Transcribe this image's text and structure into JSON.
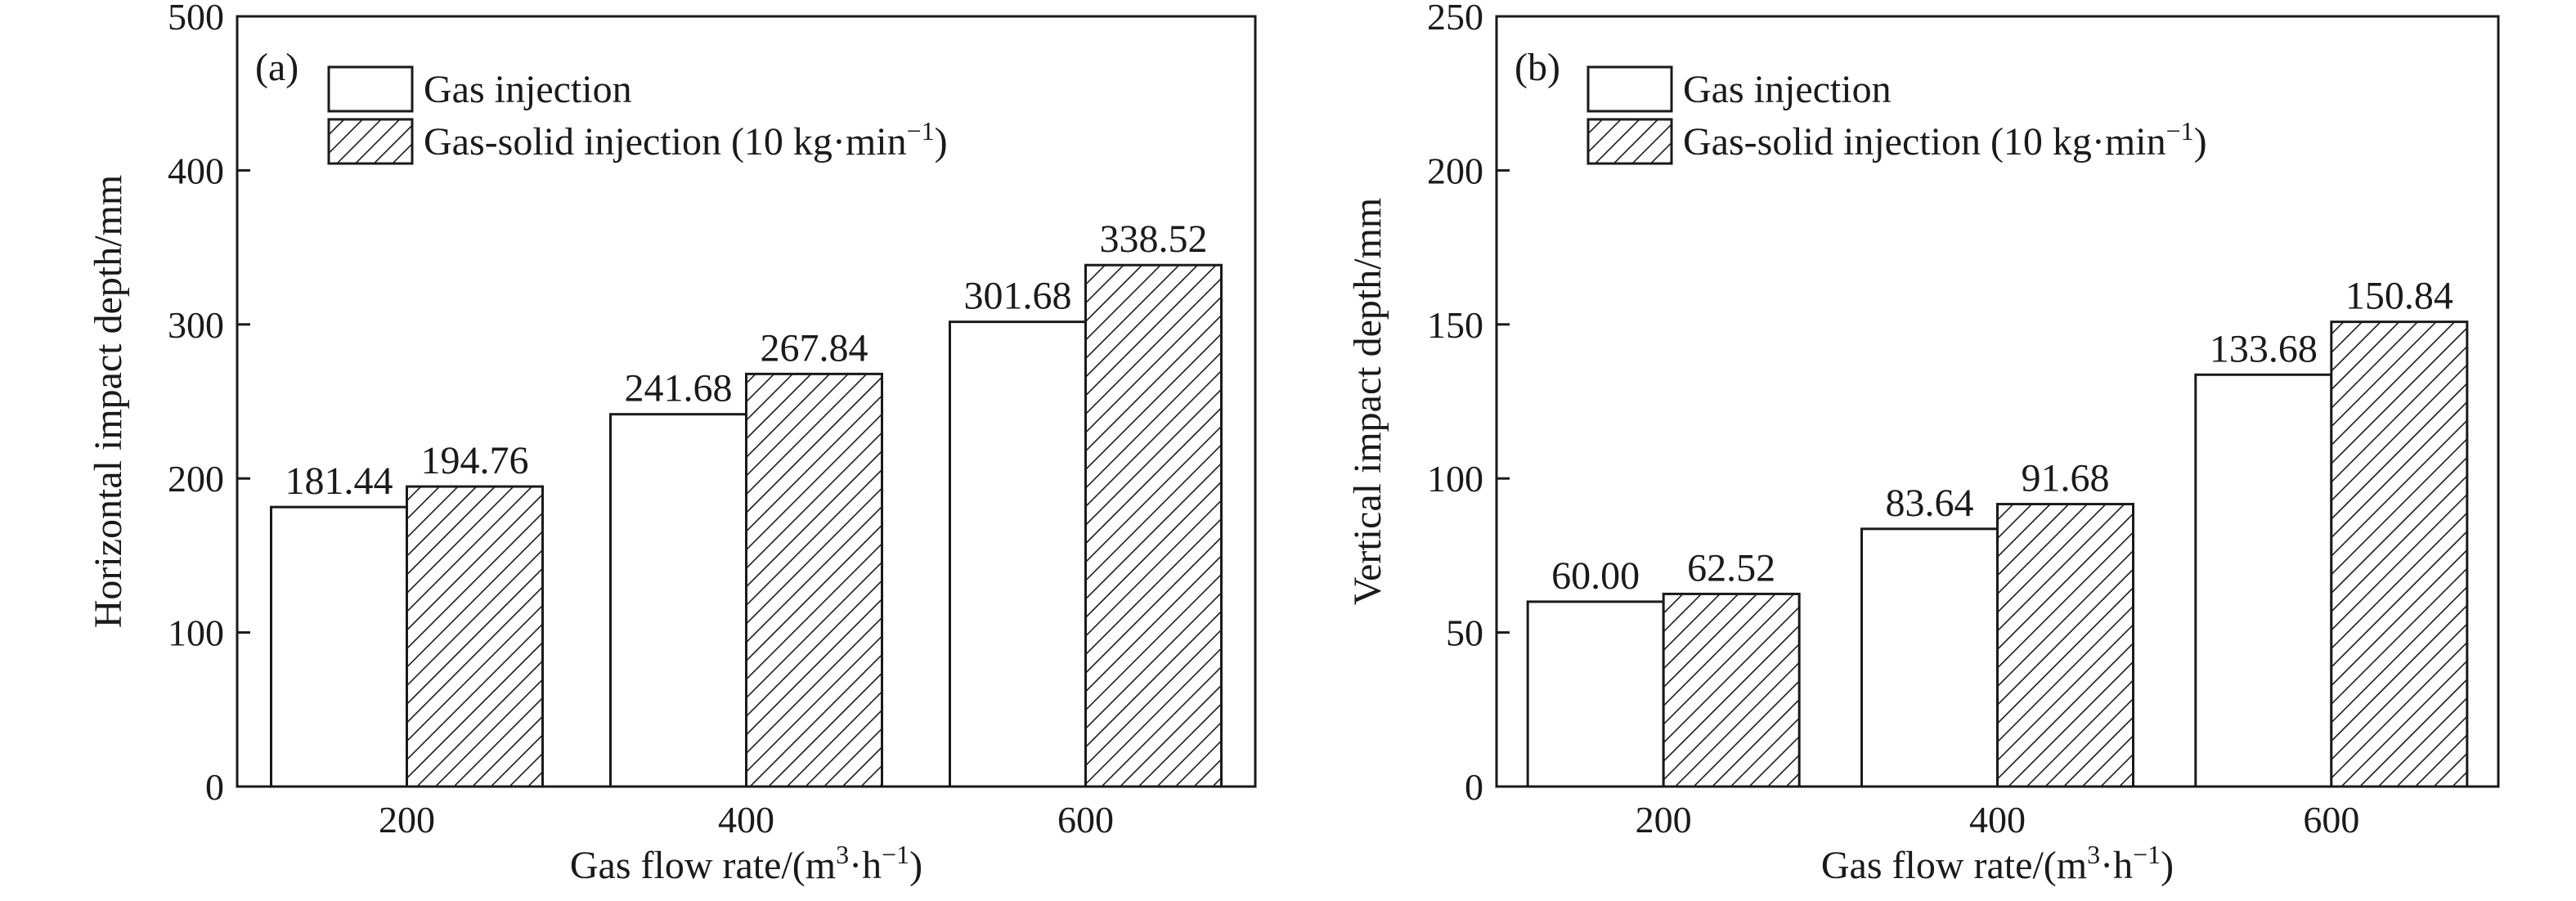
{
  "colors": {
    "ink": "#1a1a1a",
    "bar_fill": "#ffffff"
  },
  "chart_data": [
    {
      "type": "bar",
      "panel_label": "(a)",
      "categories": [
        "200",
        "400",
        "600"
      ],
      "series": [
        {
          "name": "Gas injection",
          "values": [
            181.44,
            241.68,
            301.68
          ],
          "value_labels": [
            "181.44",
            "241.68",
            "301.68"
          ],
          "pattern": "none"
        },
        {
          "name": "Gas-solid injection (10 kg·min",
          "name_sup": "−1",
          "name_tail": ")",
          "values": [
            194.76,
            267.84,
            338.52
          ],
          "value_labels": [
            "194.76",
            "267.84",
            "338.52"
          ],
          "pattern": "hatch"
        }
      ],
      "xlabel": "Gas flow rate/(m",
      "xlabel_sup1": "3",
      "xlabel_mid": "·h",
      "xlabel_sup2": "−1",
      "xlabel_tail": ")",
      "ylabel": "Horizontal impact depth/mm",
      "ylim": [
        0,
        500
      ],
      "yticks": [
        "0",
        "100",
        "200",
        "300",
        "400",
        "500"
      ],
      "grid": false,
      "legend": "top-left"
    },
    {
      "type": "bar",
      "panel_label": "(b)",
      "categories": [
        "200",
        "400",
        "600"
      ],
      "series": [
        {
          "name": "Gas injection",
          "values": [
            60.0,
            83.64,
            133.68
          ],
          "value_labels": [
            "60.00",
            "83.64",
            "133.68"
          ],
          "pattern": "none"
        },
        {
          "name": "Gas-solid injection (10 kg·min",
          "name_sup": "−1",
          "name_tail": ")",
          "values": [
            62.52,
            91.68,
            150.84
          ],
          "value_labels": [
            "62.52",
            "91.68",
            "150.84"
          ],
          "pattern": "hatch"
        }
      ],
      "xlabel": "Gas flow rate/(m",
      "xlabel_sup1": "3",
      "xlabel_mid": "·h",
      "xlabel_sup2": "−1",
      "xlabel_tail": ")",
      "ylabel": "Vertical impact depth/mm",
      "ylim": [
        0,
        250
      ],
      "yticks": [
        "0",
        "50",
        "100",
        "150",
        "200",
        "250"
      ],
      "grid": false,
      "legend": "top-left"
    }
  ]
}
